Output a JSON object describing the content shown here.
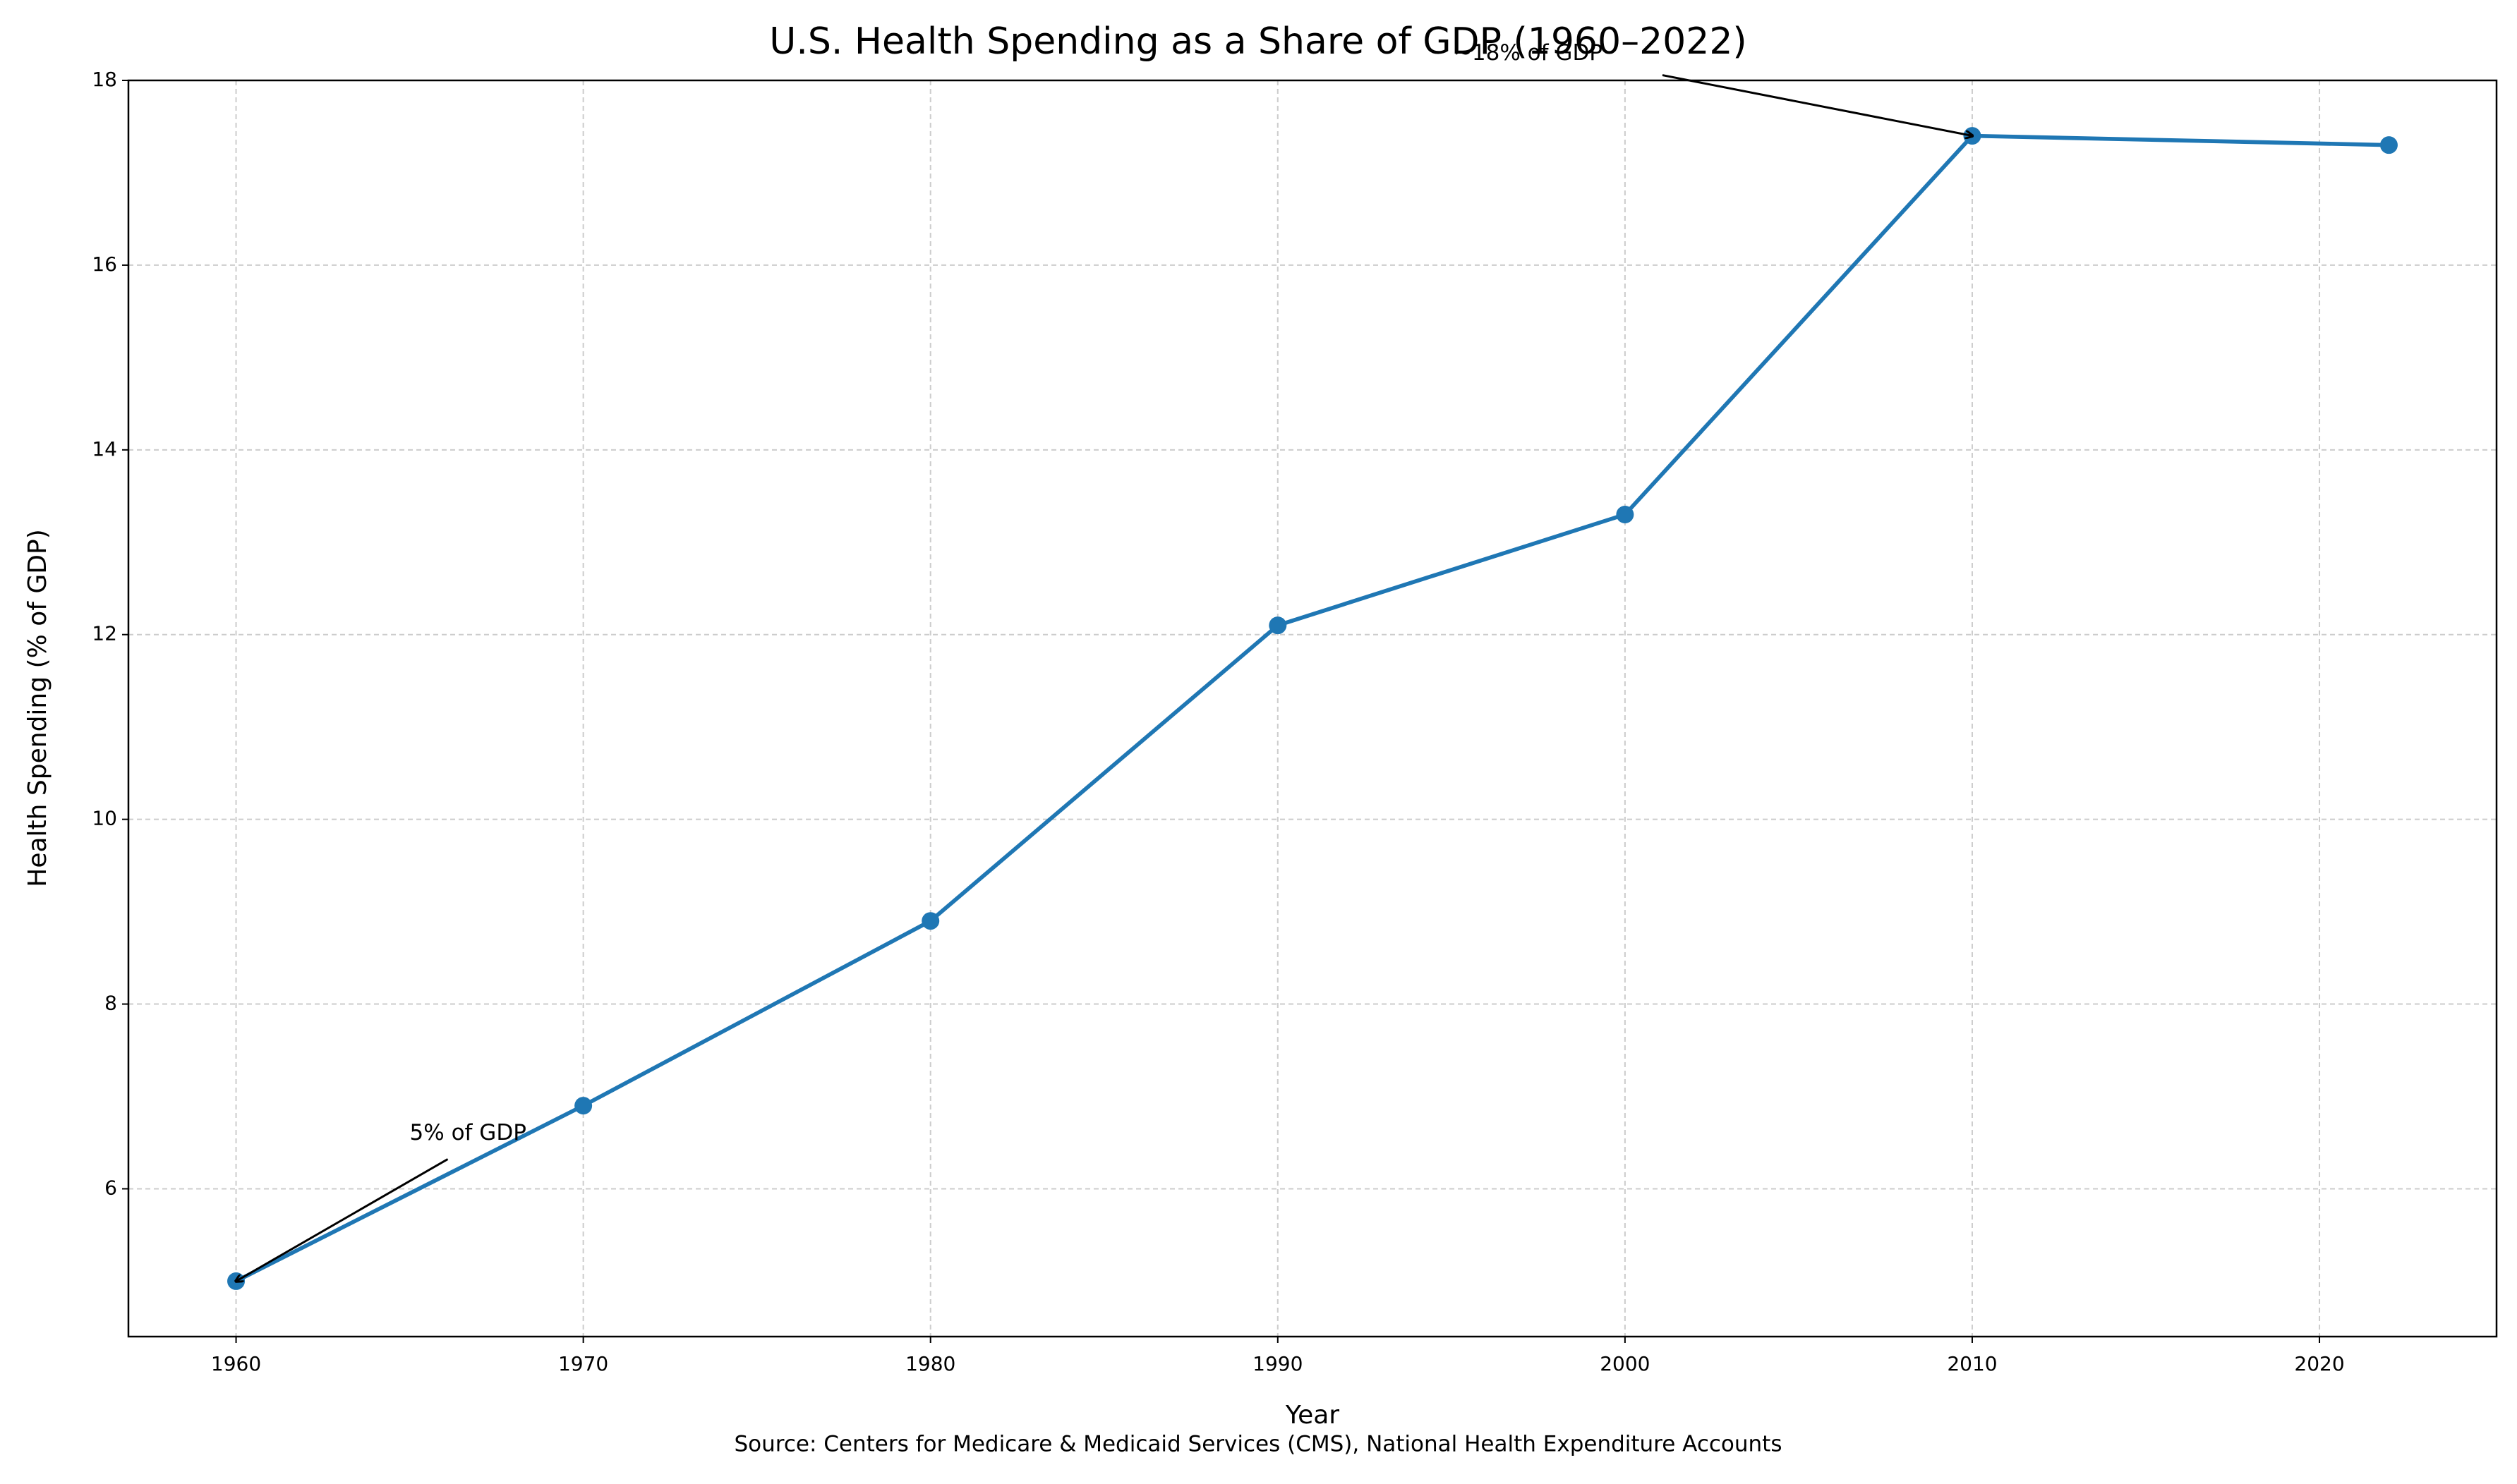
{
  "chart_data": {
    "type": "line",
    "title": "U.S. Health Spending as a Share of GDP (1960–2022)",
    "x_label": "Year",
    "y_label": "Health Spending (% of GDP)",
    "source": "Source: Centers for Medicare & Medicaid Services (CMS), National Health Expenditure Accounts",
    "x": [
      1960,
      1970,
      1980,
      1990,
      2000,
      2010,
      2022
    ],
    "series": [
      {
        "color": "#1f77b4",
        "values": [
          5.0,
          6.9,
          8.9,
          12.1,
          13.3,
          17.4,
          17.3
        ]
      }
    ],
    "xlim": [
      1956.9,
      2025.1
    ],
    "ylim": [
      4.4,
      18
    ],
    "xticks": [
      1960,
      1970,
      1980,
      1990,
      2000,
      2010,
      2020
    ],
    "yticks": [
      6,
      8,
      10,
      12,
      14,
      16,
      18
    ],
    "grid": true,
    "annotations": [
      {
        "text": "5% of GDP",
        "x": 1960,
        "y": 5.0
      },
      {
        "text": "~18% of GDP",
        "x": 2010,
        "y": 17.4
      }
    ]
  }
}
